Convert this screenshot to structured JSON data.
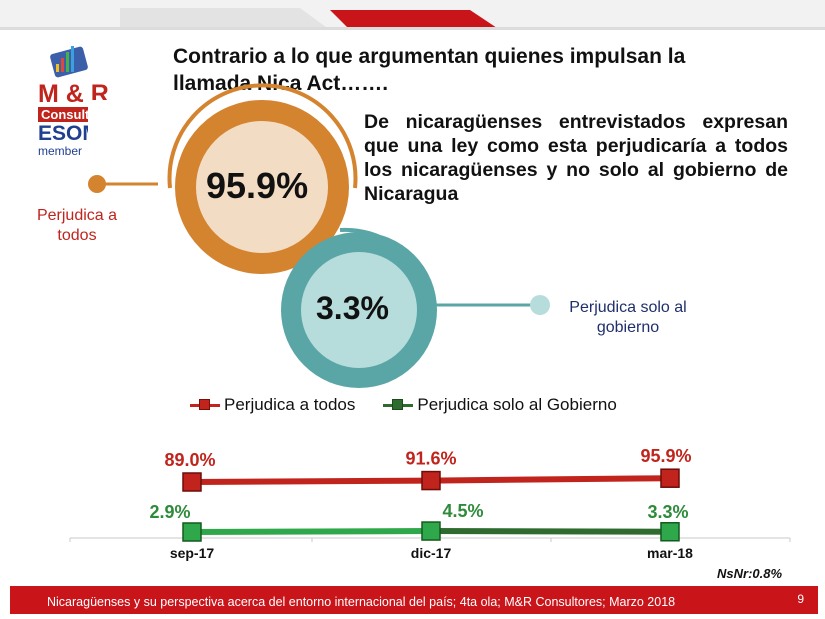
{
  "slide": {
    "title": "Contrario a lo que argumentan quienes impulsan la llamada Nica Act…….",
    "subtitle": "De nicaragüenses entrevistados expresan que una ley como esta perjudicaría a todos los nicaragüenses y no solo al gobierno de Nicaragua",
    "note": "NsNr:0.8%",
    "footer": "Nicaragüenses y su perspectiva acerca del entorno internacional del país; 4ta ola; M&R Consultores; Marzo 2018",
    "page_number": "9",
    "logo": {
      "line1": "M & R",
      "line2": "Consult",
      "line3": "ESOM",
      "line4": "member"
    }
  },
  "donuts": [
    {
      "value_label": "95.9%",
      "caption": "Perjudica a todos",
      "color": "#d4832f",
      "caption_color": "#c0241d"
    },
    {
      "value_label": "3.3%",
      "caption": "Perjudica solo al gobierno",
      "color": "#5aa6a6",
      "caption_color": "#1f2f6b"
    }
  ],
  "chart_data": {
    "type": "line",
    "categories": [
      "sep-17",
      "dic-17",
      "mar-18"
    ],
    "series": [
      {
        "name": "Perjudica a todos",
        "values": [
          89.0,
          91.6,
          95.9
        ],
        "labels": [
          "89.0%",
          "91.6%",
          "95.9%"
        ],
        "color": "#c0241d",
        "label_color": "#c0241d"
      },
      {
        "name": "Perjudica solo al Gobierno",
        "values": [
          2.9,
          4.5,
          3.3
        ],
        "labels": [
          "2.9%",
          "4.5%",
          "3.3%"
        ],
        "color": "#2f6b2f",
        "label_color": "#2e8b3a"
      }
    ],
    "legend_position": "top",
    "grid": false
  }
}
